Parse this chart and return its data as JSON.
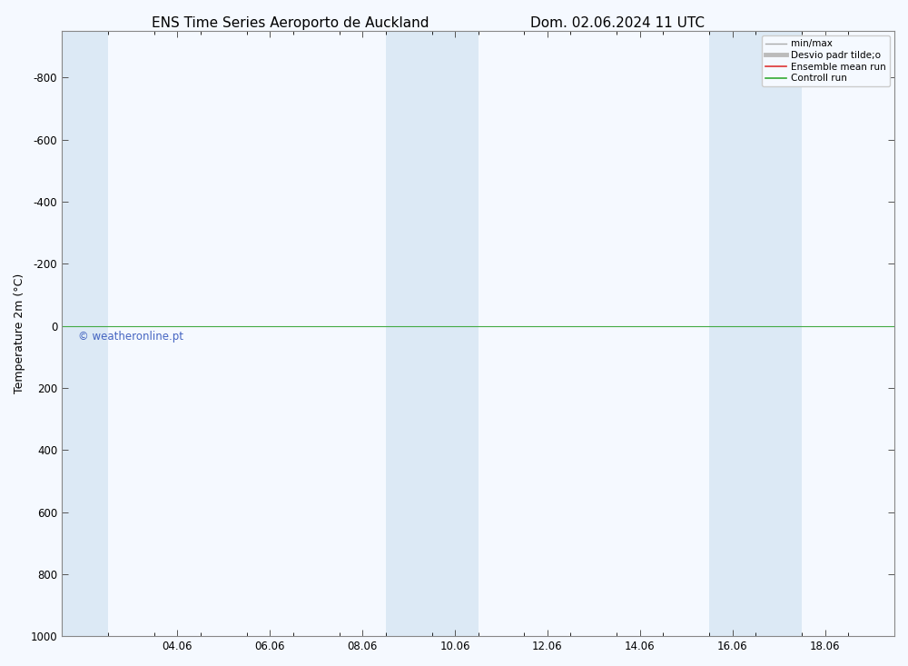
{
  "title_left": "ENS Time Series Aeroporto de Auckland",
  "title_right": "Dom. 02.06.2024 11 UTC",
  "ylabel": "Temperature 2m (°C)",
  "copyright": "© weatheronline.pt",
  "ylim_bottom": 1000,
  "ylim_top": -950,
  "yticks": [
    -800,
    -600,
    -400,
    -200,
    0,
    200,
    400,
    600,
    800,
    1000
  ],
  "xtick_labels": [
    "04.06",
    "06.06",
    "08.06",
    "10.06",
    "12.06",
    "14.06",
    "16.06",
    "18.06"
  ],
  "xtick_positions": [
    3.0,
    5.0,
    7.0,
    9.0,
    11.0,
    13.0,
    15.0,
    17.0
  ],
  "xlim_min": 0.5,
  "xlim_max": 18.5,
  "shaded_bands": [
    {
      "x_start": 0.5,
      "x_end": 1.5,
      "color": "#dce9f5"
    },
    {
      "x_start": 7.5,
      "x_end": 9.5,
      "color": "#dce9f5"
    },
    {
      "x_start": 14.5,
      "x_end": 16.5,
      "color": "#dce9f5"
    }
  ],
  "hline_y": 0,
  "hline_color": "#44aa44",
  "hline_lw": 0.8,
  "legend_items": [
    {
      "label": "min/max",
      "color": "#aaaaaa",
      "lw": 1.0
    },
    {
      "label": "Desvio padr tilde;o",
      "color": "#bbbbbb",
      "lw": 3.5
    },
    {
      "label": "Ensemble mean run",
      "color": "#dd3333",
      "lw": 1.2
    },
    {
      "label": "Controll run",
      "color": "#33aa33",
      "lw": 1.2
    }
  ],
  "fig_bg_color": "#f5f9ff",
  "plot_bg_color": "#f5f9ff",
  "title_fontsize": 11,
  "axis_label_fontsize": 9,
  "tick_fontsize": 8.5,
  "copyright_color": "#3355bb",
  "copyright_fontsize": 8.5
}
